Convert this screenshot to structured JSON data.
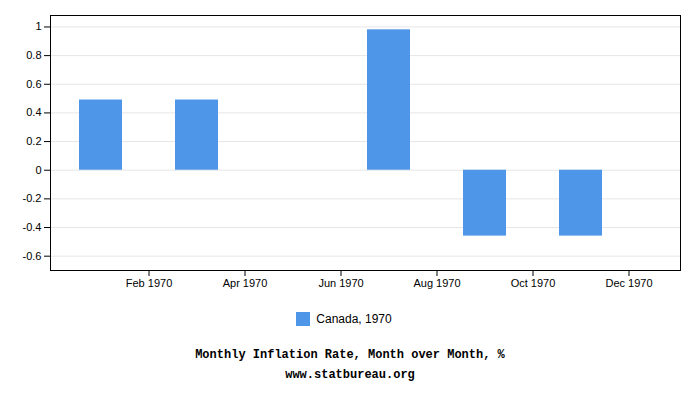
{
  "chart_data": {
    "type": "bar",
    "categories": [
      null,
      "Feb 1970",
      null,
      "Apr 1970",
      null,
      "Jun 1970",
      null,
      "Aug 1970",
      null,
      "Oct 1970",
      null,
      "Dec 1970"
    ],
    "series": [
      {
        "name": "Canada, 1970",
        "color": "#4d96e8",
        "values": [
          0.49,
          null,
          0.49,
          null,
          null,
          null,
          0.98,
          null,
          -0.46,
          null,
          -0.46,
          null
        ]
      }
    ],
    "xlabel": "Monthly Inflation Rate, Month over Month, %",
    "annotations": [
      "www.statbureau.org"
    ],
    "ylim": [
      -0.7,
      1.08
    ],
    "yticks": [
      -0.6,
      -0.4,
      -0.2,
      0,
      0.2,
      0.4,
      0.6,
      0.8,
      1
    ],
    "grid": true,
    "legend": "bottom"
  }
}
